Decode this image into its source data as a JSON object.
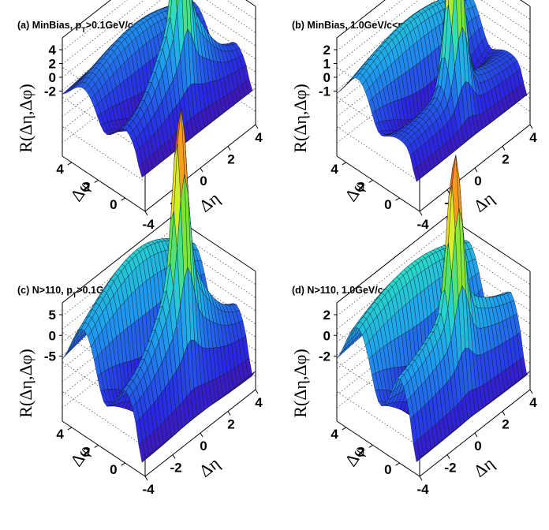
{
  "chart_data": [
    {
      "type": "surface",
      "title_main": "(a) MinBias, p",
      "title_sub": "T",
      "title_rest": ">0.1GeV/c",
      "zlabel": "R(Δη,Δφ)",
      "xlabel": "Δη",
      "ylabel": "Δφ",
      "zticks": [
        "4",
        "2",
        "0",
        "-2"
      ],
      "zrange": [
        -3,
        5
      ],
      "xticks": [
        "-4",
        "-2",
        "0",
        "2",
        "4"
      ],
      "yticks": [
        "0",
        "2",
        "4"
      ],
      "surface": {
        "base": 0.2,
        "near_side_amp": 2.2,
        "near_side_width": 0.45,
        "peak_amp": 4.2,
        "peak_width": 0.35,
        "ridge_amp": 0.6,
        "away_side_amp": 1.4,
        "eta_falloff": 0.3,
        "dip_depth": 1.5,
        "scale": 0.28
      }
    },
    {
      "type": "surface",
      "title_main": "(b) MinBias, 1.0GeV/c<p",
      "title_sub": "T",
      "title_rest": "<3.0GeV/c",
      "zlabel": "R(Δη,Δφ)",
      "xlabel": "Δη",
      "ylabel": "Δφ",
      "zticks": [
        "2",
        "1",
        "0",
        "-1"
      ],
      "zrange": [
        -1.5,
        2.5
      ],
      "xticks": [
        "-4",
        "-2",
        "0",
        "2",
        "4"
      ],
      "yticks": [
        "0",
        "2",
        "4"
      ],
      "surface": {
        "base": 0.1,
        "near_side_amp": 0.3,
        "near_side_width": 0.5,
        "peak_amp": 3.4,
        "peak_width": 0.45,
        "ridge_amp": 0.1,
        "away_side_amp": 1.1,
        "eta_falloff": 0.2,
        "dip_depth": 1.1,
        "scale": 0.42
      }
    },
    {
      "type": "surface",
      "title_main": "(c) N>110, p",
      "title_sub": "T",
      "title_rest": ">0.1GeV/c",
      "zlabel": "R(Δη,Δφ)",
      "xlabel": "Δη",
      "ylabel": "Δφ",
      "zticks": [
        "5",
        "0",
        "-5"
      ],
      "zrange": [
        -7,
        7
      ],
      "xticks": [
        "-4",
        "-2",
        "0",
        "2",
        "4"
      ],
      "yticks": [
        "0",
        "2",
        "4"
      ],
      "surface": {
        "base": 0.0,
        "near_side_amp": 2.0,
        "near_side_width": 0.5,
        "peak_amp": 4.5,
        "peak_width": 0.4,
        "ridge_amp": 1.0,
        "away_side_amp": 2.6,
        "eta_falloff": 0.25,
        "dip_depth": 2.2,
        "scale": 0.3
      }
    },
    {
      "type": "surface",
      "title_main": "(d) N>110, 1.0GeV/c<p",
      "title_sub": "T",
      "title_rest": "<3.0GeV/c",
      "zlabel": "R(Δη,Δφ)",
      "xlabel": "Δη",
      "ylabel": "Δφ",
      "zticks": [
        "2",
        "0",
        "-2"
      ],
      "zrange": [
        -3,
        3
      ],
      "xticks": [
        "-4",
        "-2",
        "0",
        "2",
        "4"
      ],
      "yticks": [
        "0",
        "2",
        "4"
      ],
      "surface": {
        "base": 0.0,
        "near_side_amp": 0.6,
        "near_side_width": 0.5,
        "peak_amp": 3.8,
        "peak_width": 0.42,
        "ridge_amp": 1.2,
        "away_side_amp": 2.0,
        "eta_falloff": 0.15,
        "dip_depth": 2.0,
        "scale": 0.33
      }
    }
  ]
}
